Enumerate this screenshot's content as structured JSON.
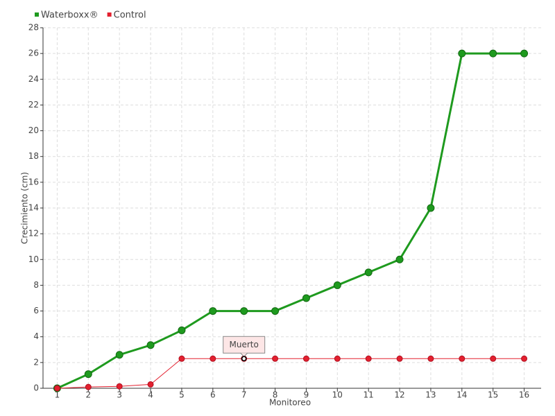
{
  "chart_data": {
    "type": "line",
    "x_label": "Monitoreo",
    "y_label": "Crecimiento (cm)",
    "categories": [
      "1",
      "2",
      "3",
      "4",
      "5",
      "6",
      "7",
      "8",
      "9",
      "10",
      "11",
      "12",
      "13",
      "14",
      "15",
      "16"
    ],
    "series": [
      {
        "name": "Waterboxx®",
        "color": "#1e9a1e",
        "values": [
          0,
          1.1,
          2.6,
          3.35,
          4.5,
          6,
          6,
          6,
          7,
          8,
          9,
          10,
          14,
          26,
          26,
          26
        ]
      },
      {
        "name": "Control",
        "color": "#e3202f",
        "values": [
          0,
          0.1,
          0.15,
          0.3,
          2.3,
          2.3,
          2.3,
          2.3,
          2.3,
          2.3,
          2.3,
          2.3,
          2.3,
          2.3,
          2.3,
          2.3
        ]
      }
    ],
    "annotation": "Muerto",
    "ylim": [
      0,
      28
    ],
    "yticks": [
      0,
      2,
      4,
      6,
      8,
      10,
      12,
      14,
      16,
      18,
      20,
      22,
      24,
      26,
      28
    ],
    "grid": true,
    "legend": "top-left"
  }
}
